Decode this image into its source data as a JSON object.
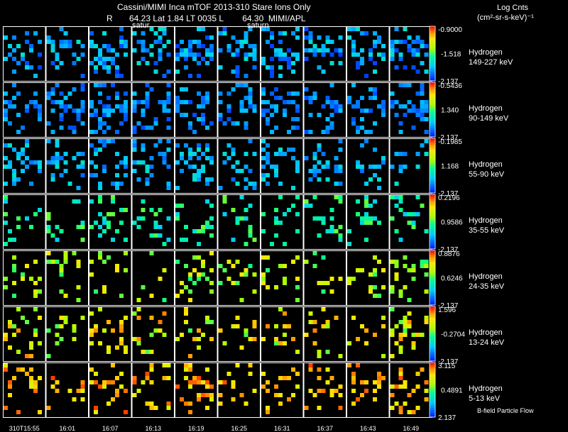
{
  "header": {
    "title": "Cassini/MIMI Inca mTOF  2013-310   Stare   Ions Only",
    "subtitle": "R       64.23 Lat 1.84 LT 0035 L        64.30  MIMI/APL",
    "units_line1": "Log Cnts",
    "units_line2": "(cm²-sr-s-keV)⁻¹"
  },
  "overlay_labels": [
    "satur",
    "saturn"
  ],
  "footer": {
    "legend_note": "B-field Particle Flow"
  },
  "chart_data": {
    "type": "heatmap",
    "description_columns": "10 INCA image frames (time) x 7 hydrogen energy channels (rows)",
    "time_labels": [
      "310T15:55",
      "16:01",
      "16:07",
      "16:13",
      "16:19",
      "16:25",
      "16:31",
      "16:37",
      "16:43",
      "16:49"
    ],
    "rows": [
      {
        "species": "Hydrogen",
        "energy": "149-227 keV",
        "max_label": "-0.9000",
        "mid_label": "-1.518",
        "min_label": "-2.137",
        "hue_lo": 0.03,
        "hue_hi": 0.35,
        "density": 0.3
      },
      {
        "species": "Hydrogen",
        "energy": "90-149 keV",
        "max_label": "-0.5436",
        "mid_label": "1.340",
        "min_label": "-2.137",
        "hue_lo": 0.05,
        "hue_hi": 0.25,
        "density": 0.28
      },
      {
        "species": "Hydrogen",
        "energy": "55-90 keV",
        "max_label": "-0.1985",
        "mid_label": "1.168",
        "min_label": "-2.137",
        "hue_lo": 0.1,
        "hue_hi": 0.35,
        "density": 0.22
      },
      {
        "species": "Hydrogen",
        "energy": "35-55 keV",
        "max_label": "0.2196",
        "mid_label": "0.9586",
        "min_label": "-2.137",
        "hue_lo": 0.25,
        "hue_hi": 0.55,
        "density": 0.15
      },
      {
        "species": "Hydrogen",
        "energy": "24-35 keV",
        "max_label": "0.8876",
        "mid_label": "0.6246",
        "min_label": "-2.137",
        "hue_lo": 0.45,
        "hue_hi": 0.78,
        "density": 0.13
      },
      {
        "species": "Hydrogen",
        "energy": "13-24 keV",
        "max_label": "1.596",
        "mid_label": "-0.2704",
        "min_label": "-2.137",
        "hue_lo": 0.5,
        "hue_hi": 0.92,
        "density": 0.17
      },
      {
        "species": "Hydrogen",
        "energy": "5-13 keV",
        "max_label": "3.115",
        "mid_label": "0.4891",
        "min_label": "2.137",
        "hue_lo": 0.7,
        "hue_hi": 0.97,
        "density": 0.17
      }
    ]
  }
}
